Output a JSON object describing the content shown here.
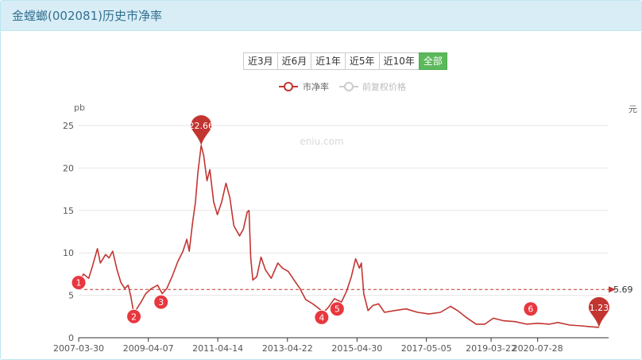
{
  "header": {
    "title": "金螳螂(002081)历史市净率"
  },
  "range_buttons": [
    {
      "label": "近3月",
      "active": false
    },
    {
      "label": "近6月",
      "active": false
    },
    {
      "label": "近1年",
      "active": false
    },
    {
      "label": "近5年",
      "active": false
    },
    {
      "label": "近10年",
      "active": false
    },
    {
      "label": "全部",
      "active": true
    }
  ],
  "colors": {
    "series": "#c23531",
    "inactive": "#cccccc",
    "grid": "#e6e6e6"
  },
  "chart_data": {
    "type": "line",
    "title": "",
    "ylabel": "pb",
    "y2label": "元",
    "watermark": "eniu.com",
    "ylim": [
      0,
      25
    ],
    "yticks": [
      0,
      5,
      10,
      15,
      20,
      25
    ],
    "xlim": [
      "2007-03-30",
      "2022-08-20"
    ],
    "xticks": [
      "2007-03-30",
      "2009-04-07",
      "2011-04-14",
      "2013-04-22",
      "2015-04-30",
      "2017-05-05",
      "2019-03-22",
      "2020-07-28"
    ],
    "legend": {
      "placement": "top-center",
      "entries": [
        {
          "name": "市净率",
          "active": true
        },
        {
          "name": "前复权价格",
          "active": false
        }
      ]
    },
    "mean_line": {
      "value": 5.69,
      "label": "5.69"
    },
    "max_marker": {
      "date": "2010-10-20",
      "value": 22.66,
      "label": "22.66"
    },
    "last_marker": {
      "date": "2022-05-10",
      "value": 1.23,
      "label": "1.23"
    },
    "annotations": [
      {
        "label": "1",
        "date": "2007-03-30",
        "value": 6.5
      },
      {
        "label": "2",
        "date": "2008-11-05",
        "value": 2.5
      },
      {
        "label": "3",
        "date": "2009-08-20",
        "value": 4.2
      },
      {
        "label": "4",
        "date": "2014-04-20",
        "value": 2.4
      },
      {
        "label": "5",
        "date": "2014-10-01",
        "value": 3.4
      },
      {
        "label": "6",
        "date": "2020-05-15",
        "value": 3.4
      }
    ],
    "series": [
      {
        "name": "市净率",
        "points": [
          [
            "2007-03-30",
            6.5
          ],
          [
            "2007-05-20",
            7.5
          ],
          [
            "2007-07-15",
            7.0
          ],
          [
            "2007-08-25",
            8.5
          ],
          [
            "2007-10-15",
            10.5
          ],
          [
            "2007-11-15",
            8.8
          ],
          [
            "2008-01-10",
            9.8
          ],
          [
            "2008-02-15",
            9.4
          ],
          [
            "2008-03-25",
            10.2
          ],
          [
            "2008-05-10",
            8.0
          ],
          [
            "2008-06-20",
            6.5
          ],
          [
            "2008-08-01",
            5.8
          ],
          [
            "2008-09-05",
            6.2
          ],
          [
            "2008-10-05",
            4.8
          ],
          [
            "2008-11-05",
            2.8
          ],
          [
            "2008-12-10",
            3.5
          ],
          [
            "2009-01-20",
            4.2
          ],
          [
            "2009-03-10",
            5.2
          ],
          [
            "2009-05-10",
            5.8
          ],
          [
            "2009-07-15",
            6.2
          ],
          [
            "2009-09-01",
            5.2
          ],
          [
            "2009-10-20",
            5.8
          ],
          [
            "2009-12-15",
            7.2
          ],
          [
            "2010-02-15",
            9.0
          ],
          [
            "2010-04-10",
            10.2
          ],
          [
            "2010-05-20",
            11.6
          ],
          [
            "2010-06-15",
            10.2
          ],
          [
            "2010-07-20",
            13.5
          ],
          [
            "2010-08-20",
            16.0
          ],
          [
            "2010-09-15",
            19.5
          ],
          [
            "2010-10-20",
            22.66
          ],
          [
            "2010-11-15",
            21.5
          ],
          [
            "2010-12-20",
            18.5
          ],
          [
            "2011-01-20",
            19.8
          ],
          [
            "2011-03-01",
            16.0
          ],
          [
            "2011-04-10",
            14.5
          ],
          [
            "2011-05-25",
            16.0
          ],
          [
            "2011-07-10",
            18.2
          ],
          [
            "2011-08-20",
            16.5
          ],
          [
            "2011-10-01",
            13.2
          ],
          [
            "2011-12-01",
            12.0
          ],
          [
            "2012-01-10",
            12.8
          ],
          [
            "2012-02-20",
            14.8
          ],
          [
            "2012-03-10",
            15.0
          ],
          [
            "2012-03-28",
            9.5
          ],
          [
            "2012-04-20",
            6.8
          ],
          [
            "2012-06-01",
            7.2
          ],
          [
            "2012-07-15",
            9.5
          ],
          [
            "2012-09-01",
            8.0
          ],
          [
            "2012-11-01",
            7.0
          ],
          [
            "2013-01-10",
            8.8
          ],
          [
            "2013-03-01",
            8.2
          ],
          [
            "2013-05-01",
            7.8
          ],
          [
            "2013-07-01",
            6.8
          ],
          [
            "2013-09-01",
            5.8
          ],
          [
            "2013-11-01",
            4.5
          ],
          [
            "2014-01-15",
            4.0
          ],
          [
            "2014-03-15",
            3.5
          ],
          [
            "2014-05-10",
            3.0
          ],
          [
            "2014-07-01",
            3.6
          ],
          [
            "2014-09-01",
            4.6
          ],
          [
            "2014-11-15",
            4.2
          ],
          [
            "2015-01-10",
            5.5
          ],
          [
            "2015-03-01",
            7.2
          ],
          [
            "2015-04-15",
            9.3
          ],
          [
            "2015-05-25",
            8.2
          ],
          [
            "2015-06-15",
            8.8
          ],
          [
            "2015-07-10",
            5.2
          ],
          [
            "2015-08-25",
            3.2
          ],
          [
            "2015-10-15",
            3.8
          ],
          [
            "2015-12-15",
            4.0
          ],
          [
            "2016-02-15",
            3.0
          ],
          [
            "2016-06-01",
            3.2
          ],
          [
            "2016-10-01",
            3.4
          ],
          [
            "2017-02-01",
            3.0
          ],
          [
            "2017-06-01",
            2.8
          ],
          [
            "2017-10-01",
            3.0
          ],
          [
            "2018-01-15",
            3.7
          ],
          [
            "2018-04-01",
            3.2
          ],
          [
            "2018-07-01",
            2.4
          ],
          [
            "2018-10-15",
            1.6
          ],
          [
            "2019-01-15",
            1.6
          ],
          [
            "2019-04-15",
            2.3
          ],
          [
            "2019-08-01",
            2.0
          ],
          [
            "2019-12-01",
            1.9
          ],
          [
            "2020-04-01",
            1.6
          ],
          [
            "2020-08-01",
            1.7
          ],
          [
            "2020-12-01",
            1.6
          ],
          [
            "2021-03-01",
            1.8
          ],
          [
            "2021-07-01",
            1.5
          ],
          [
            "2021-11-01",
            1.4
          ],
          [
            "2022-02-01",
            1.3
          ],
          [
            "2022-05-10",
            1.23
          ]
        ]
      }
    ]
  }
}
